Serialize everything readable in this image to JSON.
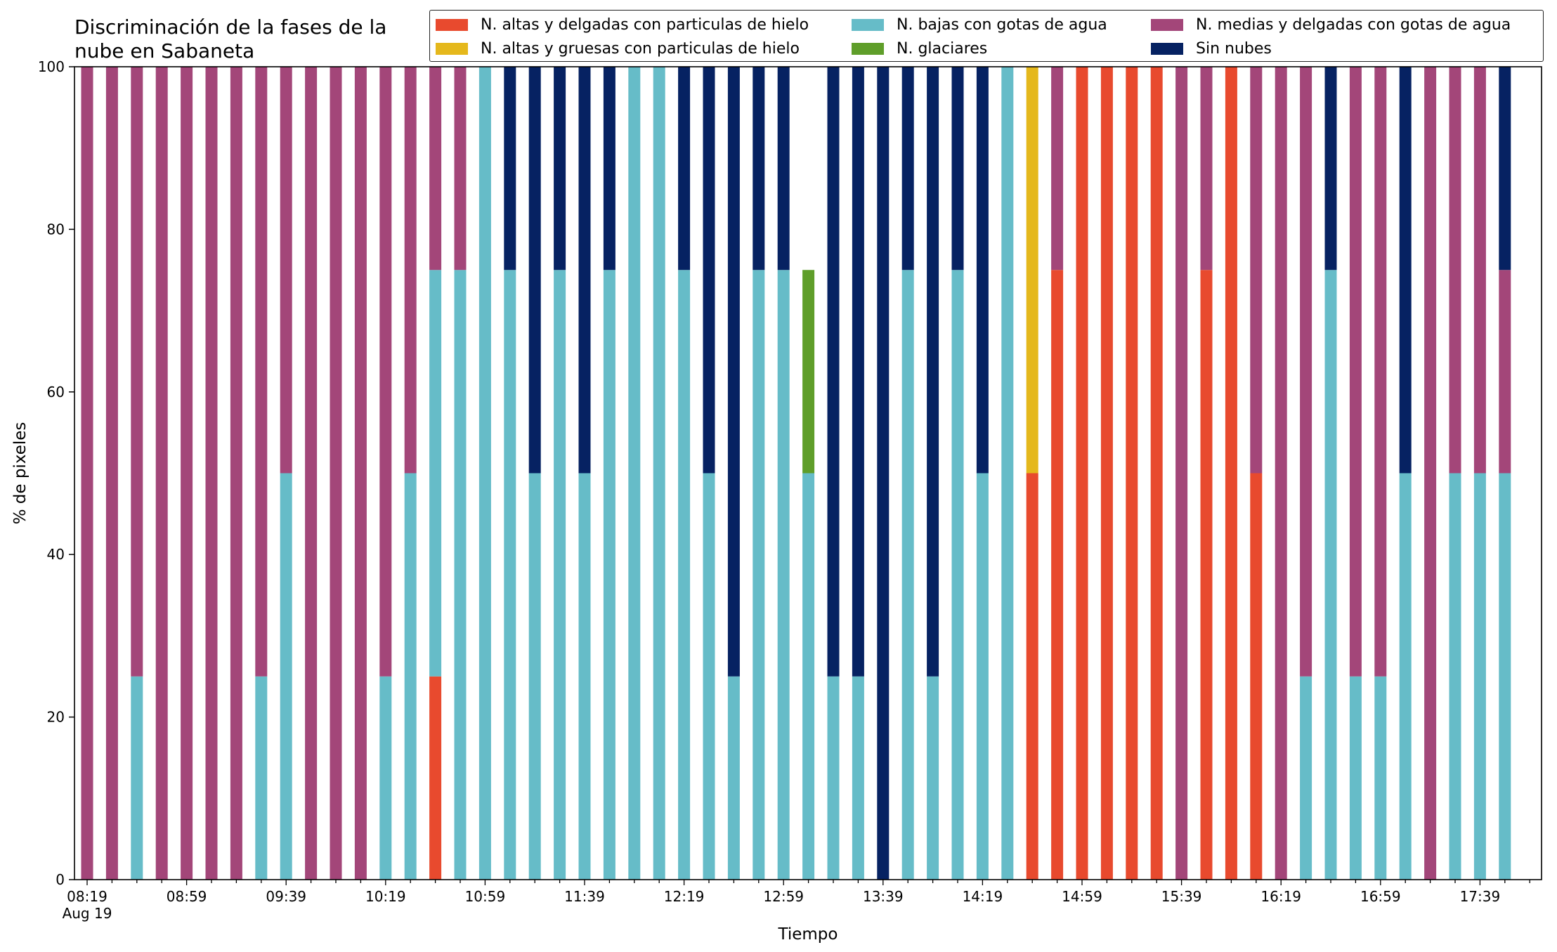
{
  "chart_data": {
    "type": "bar",
    "stacked": true,
    "title": "Discriminación de la fases de la\nnube en Sabaneta",
    "xlabel": "Tiempo",
    "ylabel": "% de pixeles",
    "ylim": [
      0,
      100
    ],
    "y_ticks": [
      "0",
      "20",
      "40",
      "60",
      "80",
      "100"
    ],
    "x_tick_labels": [
      "08:19",
      "08:59",
      "09:39",
      "10:19",
      "10:59",
      "11:39",
      "12:19",
      "12:59",
      "13:39",
      "14:19",
      "14:59",
      "15:39",
      "16:19",
      "16:59",
      "17:39"
    ],
    "x_date_label": "Aug 19",
    "legend_position": "top",
    "categories": [
      "08:19",
      "08:29",
      "08:39",
      "08:49",
      "08:59",
      "09:09",
      "09:19",
      "09:29",
      "09:39",
      "09:49",
      "09:59",
      "10:09",
      "10:19",
      "10:29",
      "10:39",
      "10:49",
      "10:59",
      "11:09",
      "11:19",
      "11:29",
      "11:39",
      "11:49",
      "11:59",
      "12:09",
      "12:19",
      "12:29",
      "12:39",
      "12:49",
      "12:59",
      "13:09",
      "13:19",
      "13:29",
      "13:39",
      "13:49",
      "13:59",
      "14:09",
      "14:19",
      "14:29",
      "14:39",
      "14:49",
      "14:59",
      "15:09",
      "15:19",
      "15:29",
      "15:39",
      "15:49",
      "15:59",
      "16:09",
      "16:19",
      "16:29",
      "16:39",
      "16:49",
      "16:59",
      "17:09",
      "17:19",
      "17:29",
      "17:39",
      "17:49"
    ],
    "series": [
      {
        "name": "N. altas y delgadas con particulas de hielo",
        "color": "#e84a2e",
        "values": [
          0,
          0,
          0,
          0,
          0,
          0,
          0,
          0,
          0,
          0,
          0,
          0,
          0,
          0,
          25,
          0,
          0,
          0,
          0,
          0,
          0,
          0,
          0,
          0,
          0,
          0,
          0,
          0,
          0,
          0,
          0,
          0,
          0,
          0,
          0,
          0,
          0,
          0,
          50,
          75,
          100,
          100,
          100,
          100,
          0,
          75,
          100,
          50,
          0,
          0,
          0,
          0,
          0,
          0,
          0,
          0,
          0,
          0
        ]
      },
      {
        "name": "N. altas y gruesas con particulas de hielo",
        "color": "#e5b81c",
        "values": [
          0,
          0,
          0,
          0,
          0,
          0,
          0,
          0,
          0,
          0,
          0,
          0,
          0,
          0,
          0,
          0,
          0,
          0,
          0,
          0,
          0,
          0,
          0,
          0,
          0,
          0,
          0,
          0,
          0,
          0,
          0,
          0,
          0,
          0,
          0,
          0,
          0,
          0,
          50,
          0,
          0,
          0,
          0,
          0,
          0,
          0,
          0,
          0,
          0,
          0,
          0,
          0,
          0,
          0,
          0,
          0,
          0,
          0
        ]
      },
      {
        "name": "N. bajas con gotas de agua",
        "color": "#66bcc8",
        "values": [
          0,
          0,
          25,
          0,
          0,
          0,
          0,
          25,
          50,
          0,
          0,
          0,
          25,
          50,
          50,
          75,
          100,
          75,
          50,
          75,
          50,
          75,
          100,
          100,
          75,
          50,
          25,
          75,
          75,
          50,
          25,
          25,
          0,
          75,
          25,
          75,
          50,
          100,
          0,
          0,
          0,
          0,
          0,
          0,
          0,
          0,
          0,
          0,
          0,
          25,
          75,
          25,
          25,
          50,
          0,
          50,
          50,
          50
        ]
      },
      {
        "name": "N. glaciares",
        "color": "#5f9e2a",
        "values": [
          0,
          0,
          0,
          0,
          0,
          0,
          0,
          0,
          0,
          0,
          0,
          0,
          0,
          0,
          0,
          0,
          0,
          0,
          0,
          0,
          0,
          0,
          0,
          0,
          0,
          0,
          0,
          0,
          0,
          25,
          0,
          0,
          0,
          0,
          0,
          0,
          0,
          0,
          0,
          0,
          0,
          0,
          0,
          0,
          0,
          0,
          0,
          0,
          0,
          0,
          0,
          0,
          0,
          0,
          0,
          0,
          0,
          0
        ]
      },
      {
        "name": "N. medias y delgadas con gotas de agua",
        "color": "#a34679",
        "values": [
          100,
          100,
          75,
          100,
          100,
          100,
          100,
          75,
          50,
          100,
          100,
          100,
          75,
          50,
          25,
          25,
          0,
          0,
          0,
          0,
          0,
          0,
          0,
          0,
          0,
          0,
          0,
          0,
          0,
          0,
          0,
          0,
          0,
          0,
          0,
          0,
          0,
          0,
          0,
          25,
          0,
          0,
          0,
          0,
          100,
          25,
          0,
          50,
          100,
          75,
          0,
          75,
          75,
          0,
          100,
          50,
          50,
          25
        ]
      },
      {
        "name": "Sin nubes",
        "color": "#062262",
        "values": [
          0,
          0,
          0,
          0,
          0,
          0,
          0,
          0,
          0,
          0,
          0,
          0,
          0,
          0,
          0,
          0,
          0,
          25,
          50,
          25,
          50,
          25,
          0,
          0,
          25,
          50,
          75,
          25,
          25,
          0,
          75,
          75,
          100,
          25,
          75,
          25,
          50,
          0,
          0,
          0,
          0,
          0,
          0,
          0,
          0,
          0,
          0,
          0,
          0,
          0,
          25,
          0,
          0,
          50,
          0,
          0,
          0,
          25
        ]
      }
    ]
  }
}
